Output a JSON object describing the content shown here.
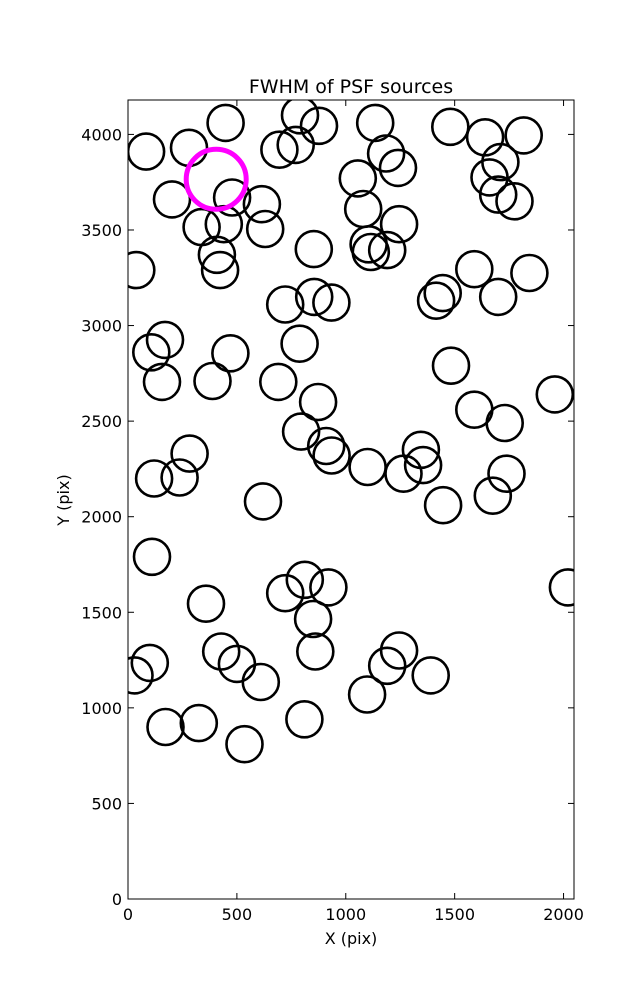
{
  "chart_data": {
    "type": "scatter",
    "title": "FWHM of PSF sources",
    "xlabel": "X (pix)",
    "ylabel": "Y (pix)",
    "xlim": [
      0,
      2048
    ],
    "ylim": [
      0,
      4180
    ],
    "xticks": [
      0,
      500,
      1000,
      1500,
      2000
    ],
    "yticks": [
      0,
      500,
      1000,
      1500,
      2000,
      2500,
      3000,
      3500,
      4000
    ],
    "grid": false,
    "marker": "open-circle",
    "sources_color": "#000000",
    "highlight_color": "#ff00ff",
    "sources": [
      {
        "x": 83,
        "y": 3910
      },
      {
        "x": 280,
        "y": 3930
      },
      {
        "x": 448,
        "y": 4060
      },
      {
        "x": 695,
        "y": 3920
      },
      {
        "x": 770,
        "y": 3945
      },
      {
        "x": 790,
        "y": 4100
      },
      {
        "x": 877,
        "y": 4045
      },
      {
        "x": 1135,
        "y": 4060
      },
      {
        "x": 1185,
        "y": 3900
      },
      {
        "x": 1240,
        "y": 3825
      },
      {
        "x": 1480,
        "y": 4040
      },
      {
        "x": 1640,
        "y": 3985
      },
      {
        "x": 1817,
        "y": 3995
      },
      {
        "x": 1710,
        "y": 3855
      },
      {
        "x": 1660,
        "y": 3775
      },
      {
        "x": 1700,
        "y": 3685
      },
      {
        "x": 1775,
        "y": 3650
      },
      {
        "x": 1055,
        "y": 3770
      },
      {
        "x": 1080,
        "y": 3610
      },
      {
        "x": 1245,
        "y": 3530
      },
      {
        "x": 202,
        "y": 3660
      },
      {
        "x": 338,
        "y": 3515
      },
      {
        "x": 478,
        "y": 3670
      },
      {
        "x": 440,
        "y": 3530
      },
      {
        "x": 408,
        "y": 3370
      },
      {
        "x": 423,
        "y": 3290
      },
      {
        "x": 615,
        "y": 3635
      },
      {
        "x": 630,
        "y": 3505
      },
      {
        "x": 853,
        "y": 3400
      },
      {
        "x": 1105,
        "y": 3425
      },
      {
        "x": 1115,
        "y": 3385
      },
      {
        "x": 1190,
        "y": 3395
      },
      {
        "x": 38,
        "y": 3290
      },
      {
        "x": 722,
        "y": 3110
      },
      {
        "x": 855,
        "y": 3150
      },
      {
        "x": 934,
        "y": 3120
      },
      {
        "x": 1415,
        "y": 3130
      },
      {
        "x": 1445,
        "y": 3170
      },
      {
        "x": 1590,
        "y": 3295
      },
      {
        "x": 1700,
        "y": 3150
      },
      {
        "x": 1843,
        "y": 3275
      },
      {
        "x": 170,
        "y": 2925
      },
      {
        "x": 107,
        "y": 2860
      },
      {
        "x": 156,
        "y": 2705
      },
      {
        "x": 388,
        "y": 2710
      },
      {
        "x": 470,
        "y": 2855
      },
      {
        "x": 788,
        "y": 2905
      },
      {
        "x": 690,
        "y": 2705
      },
      {
        "x": 1483,
        "y": 2790
      },
      {
        "x": 1960,
        "y": 2640
      },
      {
        "x": 873,
        "y": 2600
      },
      {
        "x": 795,
        "y": 2445
      },
      {
        "x": 1590,
        "y": 2560
      },
      {
        "x": 1730,
        "y": 2490
      },
      {
        "x": 283,
        "y": 2330
      },
      {
        "x": 120,
        "y": 2200
      },
      {
        "x": 237,
        "y": 2205
      },
      {
        "x": 620,
        "y": 2080
      },
      {
        "x": 910,
        "y": 2370
      },
      {
        "x": 935,
        "y": 2320
      },
      {
        "x": 1100,
        "y": 2260
      },
      {
        "x": 1345,
        "y": 2350
      },
      {
        "x": 1355,
        "y": 2270
      },
      {
        "x": 1265,
        "y": 2225
      },
      {
        "x": 1447,
        "y": 2060
      },
      {
        "x": 1738,
        "y": 2225
      },
      {
        "x": 1675,
        "y": 2110
      },
      {
        "x": 110,
        "y": 1790
      },
      {
        "x": 2020,
        "y": 1630
      },
      {
        "x": 722,
        "y": 1600
      },
      {
        "x": 812,
        "y": 1670
      },
      {
        "x": 920,
        "y": 1630
      },
      {
        "x": 850,
        "y": 1465
      },
      {
        "x": 860,
        "y": 1295
      },
      {
        "x": 358,
        "y": 1545
      },
      {
        "x": 428,
        "y": 1295
      },
      {
        "x": 500,
        "y": 1230
      },
      {
        "x": 610,
        "y": 1135
      },
      {
        "x": 100,
        "y": 1235
      },
      {
        "x": 30,
        "y": 1170
      },
      {
        "x": 1245,
        "y": 1300
      },
      {
        "x": 1190,
        "y": 1220
      },
      {
        "x": 1390,
        "y": 1170
      },
      {
        "x": 1098,
        "y": 1070
      },
      {
        "x": 810,
        "y": 940
      },
      {
        "x": 172,
        "y": 900
      },
      {
        "x": 325,
        "y": 920
      },
      {
        "x": 535,
        "y": 810
      }
    ],
    "highlight": {
      "x": 405,
      "y": 3765
    }
  }
}
